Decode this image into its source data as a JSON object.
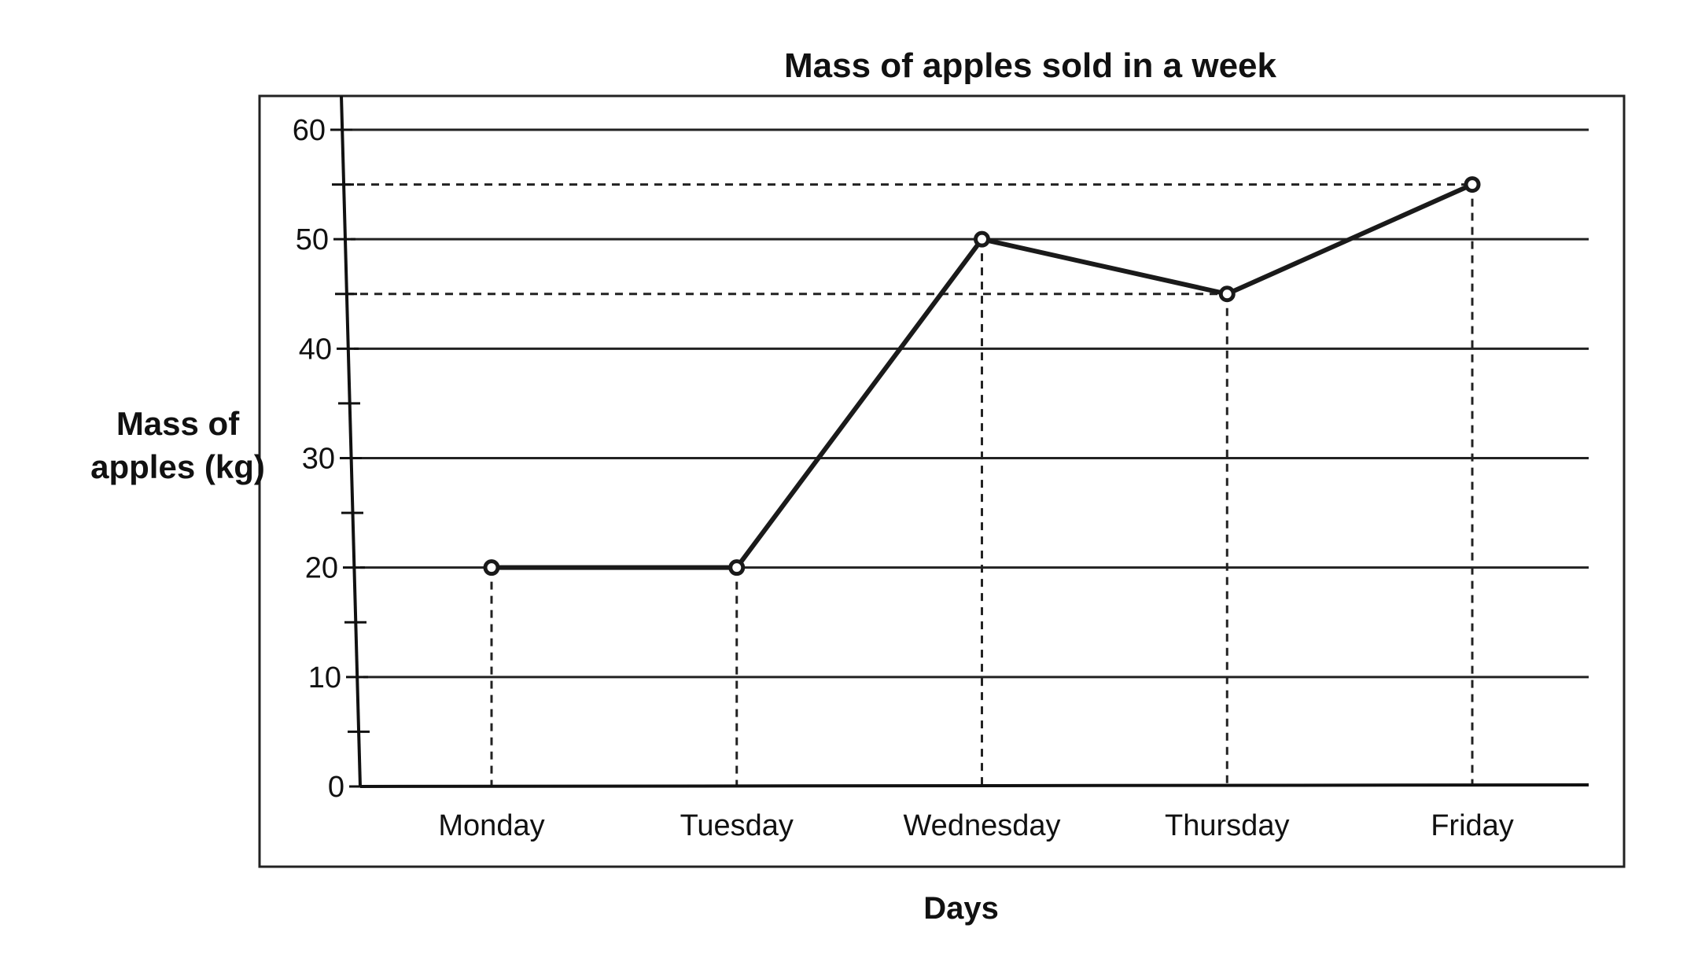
{
  "chart_data": {
    "type": "line",
    "title": "Mass of apples sold in a week",
    "xlabel": "Days",
    "ylabel_lines": [
      "Mass of",
      "apples (kg)"
    ],
    "categories": [
      "Monday",
      "Tuesday",
      "Wednesday",
      "Thursday",
      "Friday"
    ],
    "values": [
      20,
      20,
      50,
      45,
      55
    ],
    "ylim": [
      0,
      60
    ],
    "y_ticks": [
      "0",
      "10",
      "20",
      "30",
      "40",
      "50",
      "60"
    ],
    "y_minor_step": 5,
    "grid": true,
    "drop_lines": true,
    "line_color": "#1a1a1a"
  }
}
